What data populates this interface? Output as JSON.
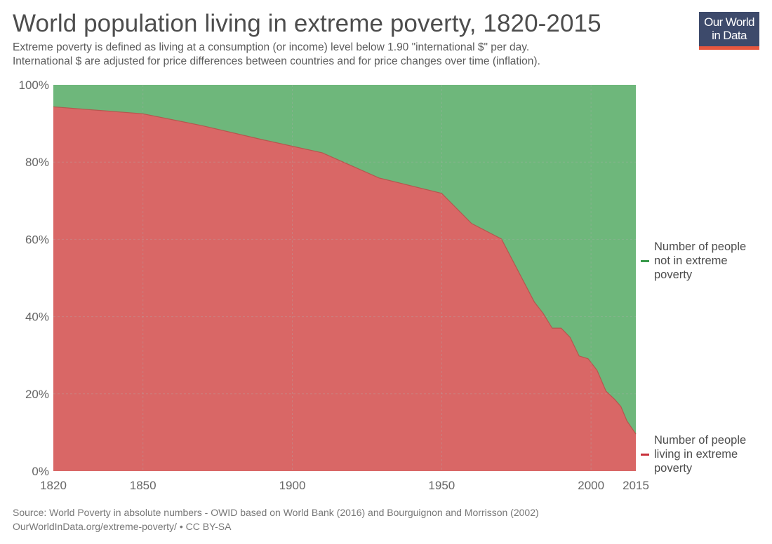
{
  "header": {
    "title": "World population living in extreme poverty, 1820-2015",
    "subtitle_line1": "Extreme poverty is defined as living at a consumption (or income) level below 1.90 \"international $\" per day.",
    "subtitle_line2": "International $ are adjusted for price differences between countries and for price changes over time (inflation)."
  },
  "logo": {
    "line1": "Our World",
    "line2": "in Data"
  },
  "footer": {
    "source": "Source: World Poverty in absolute numbers - OWID based on World Bank (2016) and Bourguignon and Morrisson (2002)",
    "url_license": "OurWorldInData.org/extreme-poverty/ • CC BY-SA"
  },
  "colors": {
    "poverty": "#d96766",
    "not_poverty": "#6eb77b",
    "poverty_line": "#b5574f",
    "legend_poverty": "#c8303a",
    "legend_not_poverty": "#3a9a4c",
    "grid": "#b0b0b0"
  },
  "chart_data": {
    "type": "area",
    "stacked": "percent",
    "title": "World population living in extreme poverty, 1820-2015",
    "xlabel": "",
    "ylabel": "",
    "xlim": [
      1820,
      2015
    ],
    "ylim": [
      0,
      100
    ],
    "x_ticks": [
      1820,
      1850,
      1900,
      1950,
      2000,
      2015
    ],
    "y_ticks": [
      0,
      20,
      40,
      60,
      80,
      100
    ],
    "y_tick_labels": [
      "0%",
      "20%",
      "40%",
      "60%",
      "80%",
      "100%"
    ],
    "grid": true,
    "legend_position": "right",
    "x": [
      1820,
      1850,
      1870,
      1890,
      1910,
      1929,
      1950,
      1960,
      1970,
      1981,
      1984,
      1987,
      1990,
      1993,
      1996,
      1999,
      2002,
      2005,
      2008,
      2010,
      2012,
      2015
    ],
    "series": [
      {
        "name": "Number of people living in extreme poverty",
        "legend_lines": [
          "Number of people",
          "living in extreme",
          "poverty"
        ],
        "values": [
          94.3,
          92.5,
          89.4,
          85.8,
          82.4,
          75.9,
          71.9,
          64.1,
          60.1,
          43.8,
          40.8,
          37.0,
          37.0,
          34.6,
          29.8,
          29.1,
          26.1,
          20.7,
          18.5,
          16.7,
          13.0,
          9.6
        ]
      },
      {
        "name": "Number of people not in extreme poverty",
        "legend_lines": [
          "Number of people",
          "not in extreme",
          "poverty"
        ],
        "values": [
          5.7,
          7.5,
          10.6,
          14.2,
          17.6,
          24.1,
          28.1,
          35.9,
          39.9,
          56.2,
          59.2,
          63.0,
          63.0,
          65.4,
          70.2,
          70.9,
          73.9,
          79.3,
          81.5,
          83.3,
          87.0,
          90.4
        ]
      }
    ]
  }
}
